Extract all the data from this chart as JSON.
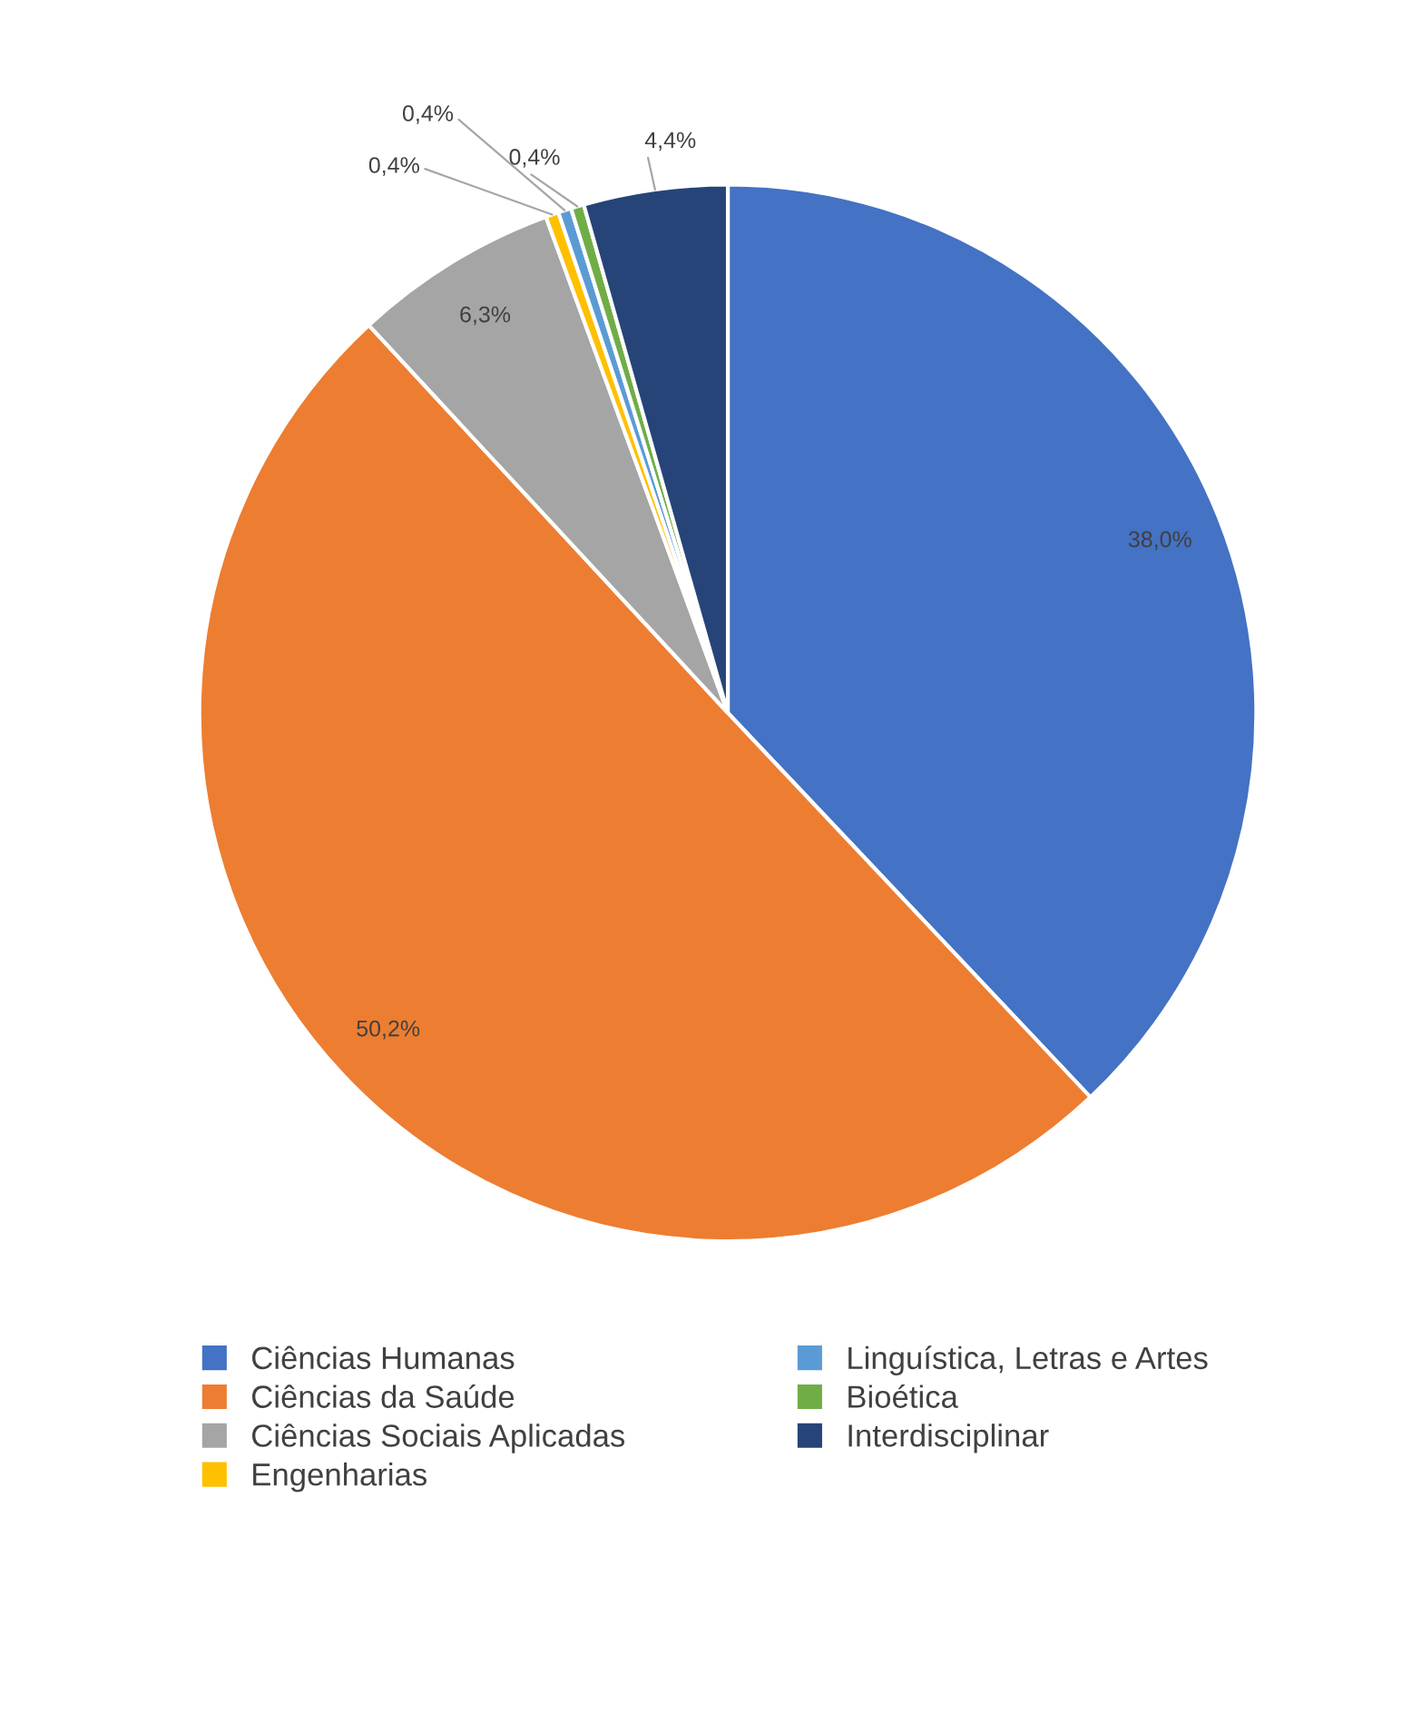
{
  "chart_data": {
    "type": "pie",
    "categories": [
      "Ciências Humanas",
      "Ciências da Saúde",
      "Ciências Sociais Aplicadas",
      "Engenharias",
      "Linguística, Letras e Artes",
      "Bioética",
      "Interdisciplinar"
    ],
    "values": [
      38.0,
      50.2,
      6.3,
      0.4,
      0.4,
      0.4,
      4.4
    ],
    "value_labels": [
      "38,0%",
      "50,2%",
      "6,3%",
      "0,4%",
      "0,4%",
      "0,4%",
      "4,4%"
    ],
    "colors": [
      "#4472c4",
      "#ed7d31",
      "#a5a5a5",
      "#ffc000",
      "#5b9bd5",
      "#70ad47",
      "#264478"
    ],
    "legend": "bottom"
  }
}
